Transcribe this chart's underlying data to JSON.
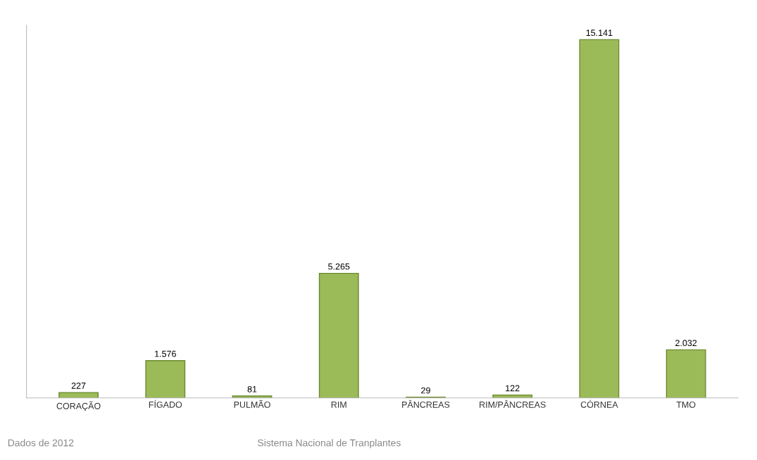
{
  "chart_data": {
    "type": "bar",
    "categories": [
      "CORAÇÃO",
      "FÍGADO",
      "PULMÃO",
      "RIM",
      "PÂNCREAS",
      "RIM/PÂNCREAS",
      "CÓRNEA",
      "TMO"
    ],
    "values": [
      227,
      1576,
      81,
      5265,
      29,
      122,
      15141,
      2032
    ],
    "value_labels": [
      "227",
      "1.576",
      "81",
      "5.265",
      "29",
      "122",
      "15.141",
      "2.032"
    ],
    "color": "#9bbb59",
    "tick_labels": "x",
    "grid": false,
    "annotations": [
      "Dados de 2012",
      "Sistema Nacional de Tranplantes"
    ]
  }
}
